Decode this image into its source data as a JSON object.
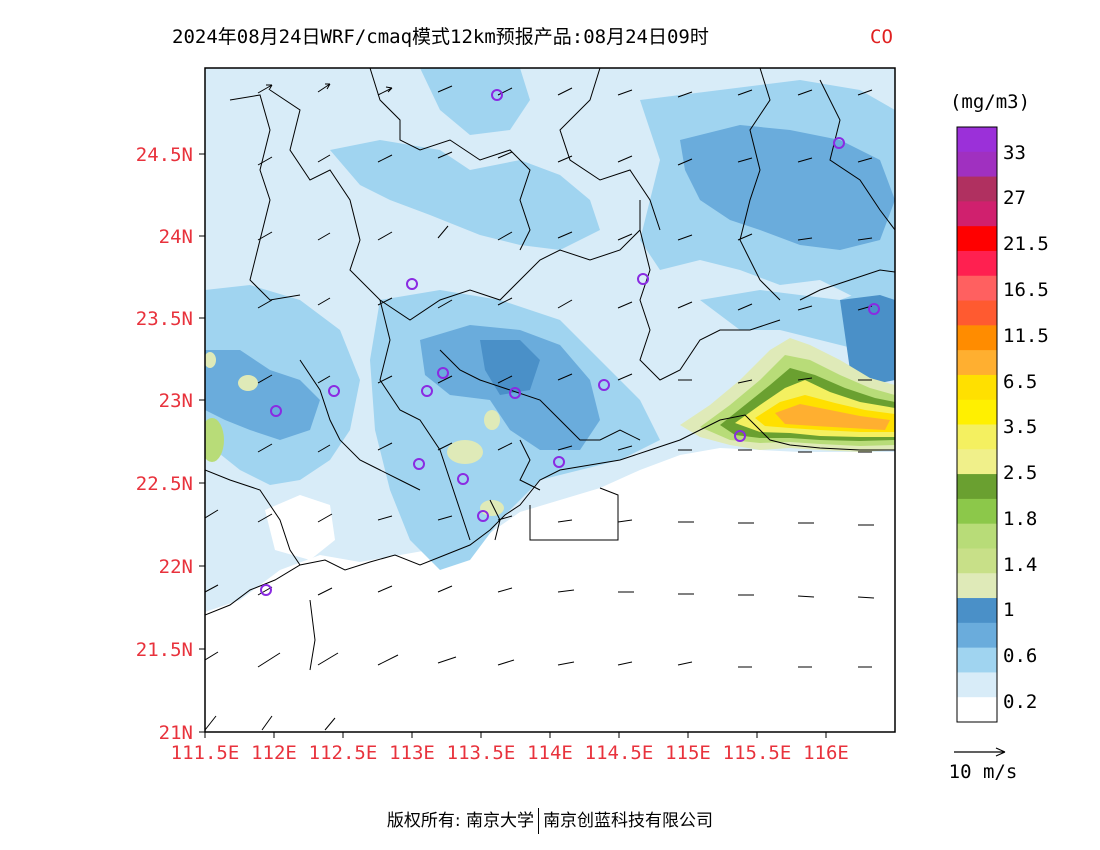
{
  "title": {
    "text": "2024年08月24日WRF/cmaq模式12km预报产品:08月24日09时",
    "pollutant": "CO"
  },
  "map": {
    "lat_range": [
      21,
      25
    ],
    "lon_range": [
      111.5,
      116.5
    ],
    "lat_ticks": [
      "24.5N",
      "24N",
      "23.5N",
      "23N",
      "22.5N",
      "22N",
      "21.5N",
      "21N"
    ],
    "lon_ticks": [
      "111.5E",
      "112E",
      "112.5E",
      "113E",
      "113.5E",
      "114E",
      "114.5E",
      "115E",
      "115.5E",
      "116E"
    ],
    "high_concentration_region": "东部沿海 (115E–116.5E, 22.7N–23.2N)",
    "station_marker_color": "#8a2be2"
  },
  "legend": {
    "unit": "(mg/m3)",
    "labels": [
      "33",
      "27",
      "21.5",
      "16.5",
      "11.5",
      "6.5",
      "3.5",
      "2.5",
      "1.8",
      "1.4",
      "1",
      "0.6",
      "0.2"
    ],
    "colors": [
      "#9b30d9",
      "#a030c0",
      "#b03060",
      "#d0206e",
      "#ff0000",
      "#ff2050",
      "#ff6060",
      "#ff5a30",
      "#ff8c00",
      "#ffaf30",
      "#ffe000",
      "#fff000",
      "#f4f060",
      "#f0f08a",
      "#6aa030",
      "#8cc84a",
      "#b8dc78",
      "#c8e088",
      "#dfeab8",
      "#4a90c8",
      "#6aacdc",
      "#a0d4f0",
      "#d8ecf8",
      "#ffffff"
    ],
    "wind_scale": "10 m/s"
  },
  "footer": {
    "copyright": "版权所有: 南京大学",
    "company": "南京创蓝科技有限公司"
  }
}
